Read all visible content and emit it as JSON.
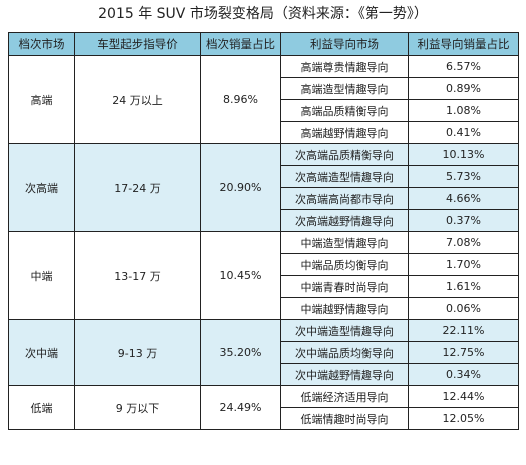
{
  "title": "2015 年 SUV 市场裂变格局（资料来源：《第一势》）",
  "headers": [
    "档次市场",
    "车型起步指导价",
    "档次销量占比",
    "利益导向市场",
    "利益导向销量占比"
  ],
  "groups": [
    {
      "tier": "高端",
      "price": "24 万以上",
      "share": "8.96%",
      "shaded": false,
      "rows": [
        {
          "market": "高端尊贵情趣导向",
          "share": "6.57%"
        },
        {
          "market": "高端造型情趣导向",
          "share": "0.89%"
        },
        {
          "market": "高端品质精衡导向",
          "share": "1.08%"
        },
        {
          "market": "高端越野情趣导向",
          "share": "0.41%"
        }
      ]
    },
    {
      "tier": "次高端",
      "price": "17-24 万",
      "share": "20.90%",
      "shaded": true,
      "rows": [
        {
          "market": "次高端品质精衡导向",
          "share": "10.13%"
        },
        {
          "market": "次高端造型情趣导向",
          "share": "5.73%"
        },
        {
          "market": "次高端高尚都市导向",
          "share": "4.66%"
        },
        {
          "market": "次高端越野情趣导向",
          "share": "0.37%"
        }
      ]
    },
    {
      "tier": "中端",
      "price": "13-17 万",
      "share": "10.45%",
      "shaded": false,
      "rows": [
        {
          "market": "中端造型情趣导向",
          "share": "7.08%"
        },
        {
          "market": "中端品质均衡导向",
          "share": "1.70%"
        },
        {
          "market": "中端青春时尚导向",
          "share": "1.61%"
        },
        {
          "market": "中端越野情趣导向",
          "share": "0.06%"
        }
      ]
    },
    {
      "tier": "次中端",
      "price": "9-13 万",
      "share": "35.20%",
      "shaded": true,
      "rows": [
        {
          "market": "次中端造型情趣导向",
          "share": "22.11%"
        },
        {
          "market": "次中端品质均衡导向",
          "share": "12.75%"
        },
        {
          "market": "次中端越野情趣导向",
          "share": "0.34%"
        }
      ]
    },
    {
      "tier": "低端",
      "price": "9 万以下",
      "share": "24.49%",
      "shaded": false,
      "rows": [
        {
          "market": "低端经济适用导向",
          "share": "12.44%"
        },
        {
          "market": "低端情趣时尚导向",
          "share": "12.05%"
        }
      ]
    }
  ]
}
